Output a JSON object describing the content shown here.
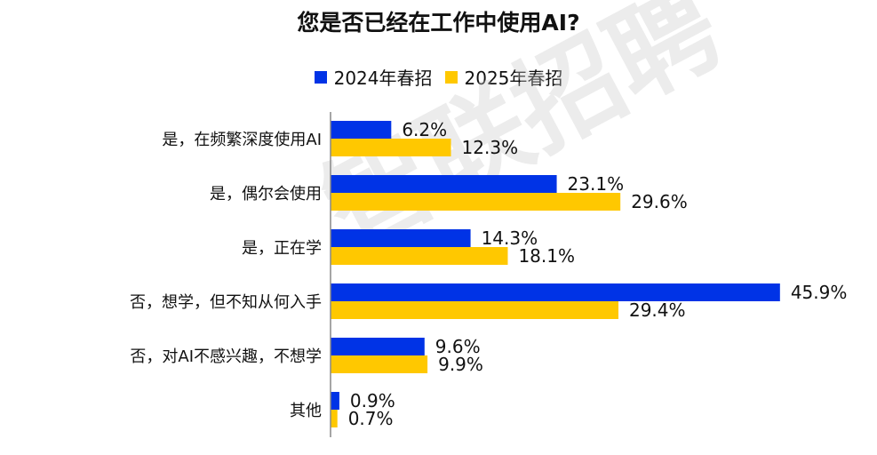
{
  "chart_data": {
    "type": "bar",
    "orientation": "horizontal",
    "title": "您是否已经在工作中使用AI?",
    "categories": [
      "是，在频繁深度使用AI",
      "是，偶尔会使用",
      "是，正在学",
      "否，想学，但不知从何入手",
      "否，对AI不感兴趣，不想学",
      "其他"
    ],
    "series": [
      {
        "name": "2024年春招",
        "color": "#0033E6",
        "values": [
          6.2,
          23.1,
          14.3,
          45.9,
          9.6,
          0.9
        ]
      },
      {
        "name": "2025年春招",
        "color": "#FFC800",
        "values": [
          12.3,
          29.6,
          18.1,
          29.4,
          9.9,
          0.7
        ]
      }
    ],
    "value_suffix": "%",
    "xlim": [
      0,
      50
    ],
    "legend": "top",
    "grid": false
  },
  "watermark": "智联招聘"
}
